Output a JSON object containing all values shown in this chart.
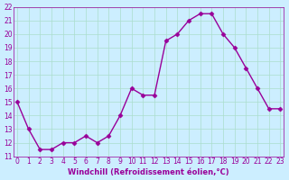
{
  "x": [
    0,
    1,
    2,
    3,
    4,
    5,
    6,
    7,
    8,
    9,
    10,
    11,
    12,
    13,
    14,
    15,
    16,
    17,
    18,
    19,
    20,
    21,
    22,
    23
  ],
  "y": [
    15,
    13,
    11.5,
    11.5,
    12,
    12,
    12.5,
    12,
    12.5,
    14,
    16,
    15.5,
    15.5,
    19.5,
    20,
    21,
    21.5,
    21.5,
    20,
    19,
    17.5,
    16,
    14.5,
    14.5
  ],
  "line_color": "#990099",
  "marker_color": "#990099",
  "bg_color": "#cceeff",
  "grid_color": "#aaddcc",
  "xlabel": "Windchill (Refroidissement éolien,°C)",
  "xlabel_color": "#990099",
  "tick_color": "#990099",
  "ylim": [
    11,
    22
  ],
  "xlim": [
    -0.3,
    23.3
  ],
  "yticks": [
    11,
    12,
    13,
    14,
    15,
    16,
    17,
    18,
    19,
    20,
    21,
    22
  ],
  "xticks": [
    0,
    1,
    2,
    3,
    4,
    5,
    6,
    7,
    8,
    9,
    10,
    11,
    12,
    13,
    14,
    15,
    16,
    17,
    18,
    19,
    20,
    21,
    22,
    23
  ]
}
